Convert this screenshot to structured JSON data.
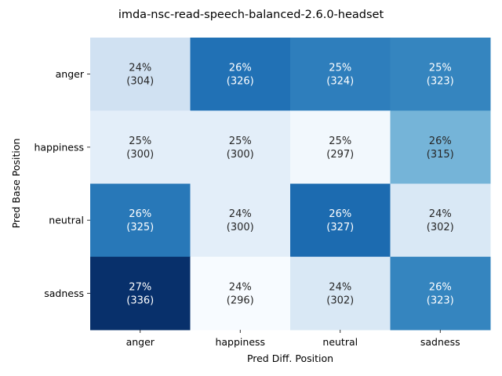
{
  "chart_data": {
    "type": "heatmap",
    "title": "imda-nsc-read-speech-balanced-2.6.0-headset",
    "xlabel": "Pred Diff. Position",
    "ylabel": "Pred Base Position",
    "x_categories": [
      "anger",
      "happiness",
      "neutral",
      "sadness"
    ],
    "y_categories": [
      "anger",
      "happiness",
      "neutral",
      "sadness"
    ],
    "counts": [
      [
        304,
        326,
        324,
        323
      ],
      [
        300,
        300,
        297,
        315
      ],
      [
        325,
        300,
        327,
        302
      ],
      [
        336,
        296,
        302,
        323
      ]
    ],
    "percent_labels": [
      [
        "24%",
        "26%",
        "25%",
        "25%"
      ],
      [
        "25%",
        "25%",
        "25%",
        "26%"
      ],
      [
        "26%",
        "24%",
        "26%",
        "24%"
      ],
      [
        "27%",
        "24%",
        "24%",
        "26%"
      ]
    ],
    "colormap": "Blues",
    "colorbar": false,
    "grid": false
  }
}
